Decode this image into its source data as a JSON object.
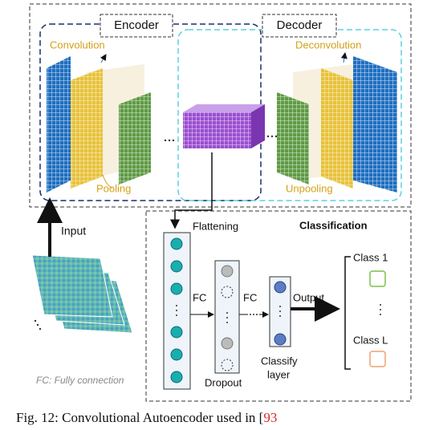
{
  "encoder": {
    "label": "Encoder",
    "convolution": "Convolution",
    "pooling": "Pooling"
  },
  "decoder": {
    "label": "Decoder",
    "deconvolution": "Deconvolution",
    "unpooling": "Unpooling"
  },
  "input": "Input",
  "flattening": "Flattening",
  "classification": {
    "title": "Classification",
    "fc_1": "FC",
    "fc_2": "FC",
    "dropout": "Dropout",
    "classify_layer": [
      "Classify",
      "layer"
    ],
    "output": "Output",
    "class_1": "Class 1",
    "class_l": "Class L"
  },
  "note": "FC: Fully connection",
  "caption": {
    "text": "Fig. 12: Convolutional Autoencoder used in [",
    "ref": "93"
  }
}
